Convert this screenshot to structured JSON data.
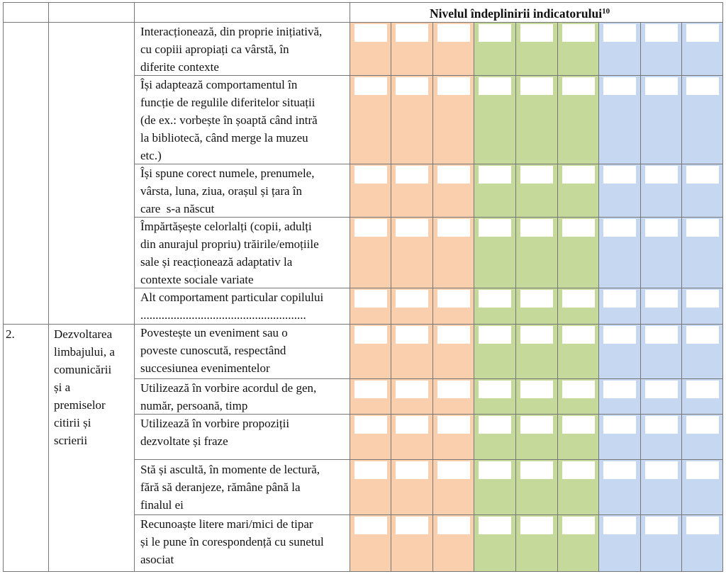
{
  "header": {
    "title": "Nivelul îndeplinirii indicatorului",
    "footnote": "10"
  },
  "colors": {
    "orange": "#f9cfae",
    "green": "#c5d99a",
    "blue": "#c6d8f1",
    "border": "#777777"
  },
  "level_columns": [
    "orange",
    "orange",
    "orange",
    "green",
    "green",
    "green",
    "blue",
    "blue",
    "blue"
  ],
  "section2": {
    "number": "2.",
    "domain": "Dezvoltarea\nlimbajului, a\ncomunicării\nși a\npremiselor\ncitirii și\nscrierii"
  },
  "rows": [
    {
      "indicator": "Interacționează, din proprie inițiativă,\ncu copiii apropiați ca vârstă, în\ndiferite contexte"
    },
    {
      "indicator": "Își adaptează comportamentul în\nfuncție de regulile diferitelor situații\n(de ex.: vorbește în șoaptă când intră\nla bibliotecă, când merge la muzeu\netc.)"
    },
    {
      "indicator": "Își spune corect numele, prenumele,\nvârsta, luna, ziua, orașul și țara în\ncare  s-a născut"
    },
    {
      "indicator": "Împărtășește celorlalți (copii, adulți\ndin anurajul propriu) trăirile/emoțiile\nsale și reacționează adaptativ la\ncontexte sociale variate"
    },
    {
      "indicator": "Alt comportament particular copilului\n......................................................."
    },
    {
      "indicator": "Povestește un eveniment sau o\npoveste cunoscută, respectând\nsuccesiunea evenimentelor"
    },
    {
      "indicator": "Utilizează în vorbire acordul de gen,\nnumăr, persoană, timp"
    },
    {
      "indicator": "Utilizează în vorbire propoziții\ndezvoltate și fraze"
    },
    {
      "indicator": "Stă și ascultă, în momente de lectură,\nfără să deranjeze, rămâne până la\nfinalul ei"
    },
    {
      "indicator": "Recunoaște litere mari/mici de tipar\nși le pune în corespondență cu sunetul\nasociat"
    }
  ]
}
